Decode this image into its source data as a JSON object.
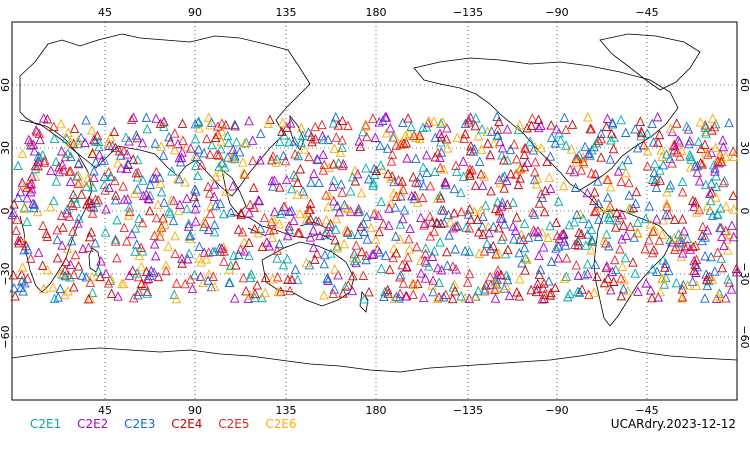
{
  "map": {
    "type": "scatter",
    "x_ticks_top": [
      "45",
      "90",
      "135",
      "180",
      "−135",
      "−90",
      "−45"
    ],
    "x_ticks_bottom": [
      "45",
      "90",
      "135",
      "180",
      "−135",
      "−90",
      "−45"
    ],
    "y_ticks_left": [
      "60",
      "30",
      "0",
      "−30",
      "−60"
    ],
    "y_ticks_right": [
      "60",
      "30",
      "0",
      "−30",
      "−60"
    ],
    "lon_range": [
      0,
      360
    ],
    "lat_range": [
      -90,
      90
    ],
    "grid": true,
    "legend_placement": "bottom-left"
  },
  "chart_data": {
    "type": "scatter",
    "marker": "triangle",
    "grid": true,
    "series": [
      {
        "name": "C2E1",
        "color": "#00aaaa"
      },
      {
        "name": "C2E2",
        "color": "#aa00cc"
      },
      {
        "name": "C2E3",
        "color": "#1166dd"
      },
      {
        "name": "C2E4",
        "color": "#cc0000"
      },
      {
        "name": "C2E5",
        "color": "#ee2222"
      },
      {
        "name": "C2E6",
        "color": "#ffaa00"
      }
    ],
    "observation_lat_range": [
      -42,
      45
    ]
  },
  "footer": {
    "label": "UCARdry.2023-12-12"
  }
}
